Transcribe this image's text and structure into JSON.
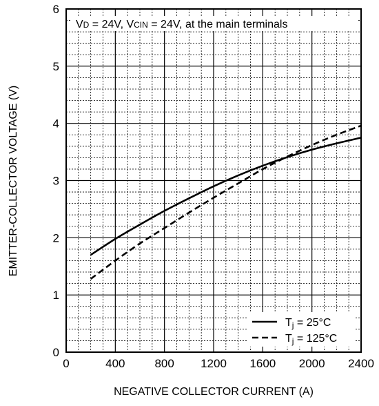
{
  "chart_data": {
    "type": "line",
    "title": "",
    "xlabel": "NEGATIVE COLLECTOR CURRENT (A)",
    "ylabel": "EMITTER-COLLECTOR VOLTAGE (V)",
    "xlim": [
      0,
      2400
    ],
    "ylim": [
      0,
      6
    ],
    "x_major_ticks": [
      0,
      400,
      800,
      1200,
      1600,
      2000,
      2400
    ],
    "x_tick_labels": [
      "0",
      "400",
      "800",
      "1200",
      "1600",
      "2000",
      "2400"
    ],
    "y_major_ticks": [
      0,
      1,
      2,
      3,
      4,
      5,
      6
    ],
    "y_tick_labels": [
      "0",
      "1",
      "2",
      "3",
      "4",
      "5",
      "6"
    ],
    "x_minor_step": 100,
    "y_minor_step": 0.2,
    "grid": "major solid, minor dashed",
    "annotation": {
      "v_main": "V",
      "v_sub": "D",
      "mid": " = 24V, V",
      "cin_sub": "CIN",
      "tail": " = 24V, at the main terminals"
    },
    "legend_position": "bottom-right",
    "series": [
      {
        "name": "Tj = 25°C",
        "name_main": "T",
        "name_sub": "j",
        "name_tail": " = 25°C",
        "style": "solid",
        "color": "#000000",
        "x": [
          200,
          400,
          600,
          800,
          1000,
          1200,
          1400,
          1600,
          1800,
          2000,
          2200,
          2400
        ],
        "y": [
          1.7,
          1.98,
          2.23,
          2.47,
          2.69,
          2.9,
          3.09,
          3.26,
          3.41,
          3.54,
          3.65,
          3.75
        ]
      },
      {
        "name": "Tj = 125°C",
        "name_main": "T",
        "name_sub": "j",
        "name_tail": " = 125°C",
        "style": "dashed",
        "color": "#000000",
        "x": [
          200,
          400,
          600,
          800,
          1000,
          1200,
          1400,
          1600,
          1800,
          2000,
          2200,
          2400
        ],
        "y": [
          1.28,
          1.6,
          1.9,
          2.17,
          2.44,
          2.7,
          2.95,
          3.2,
          3.42,
          3.62,
          3.8,
          3.96
        ]
      }
    ]
  }
}
